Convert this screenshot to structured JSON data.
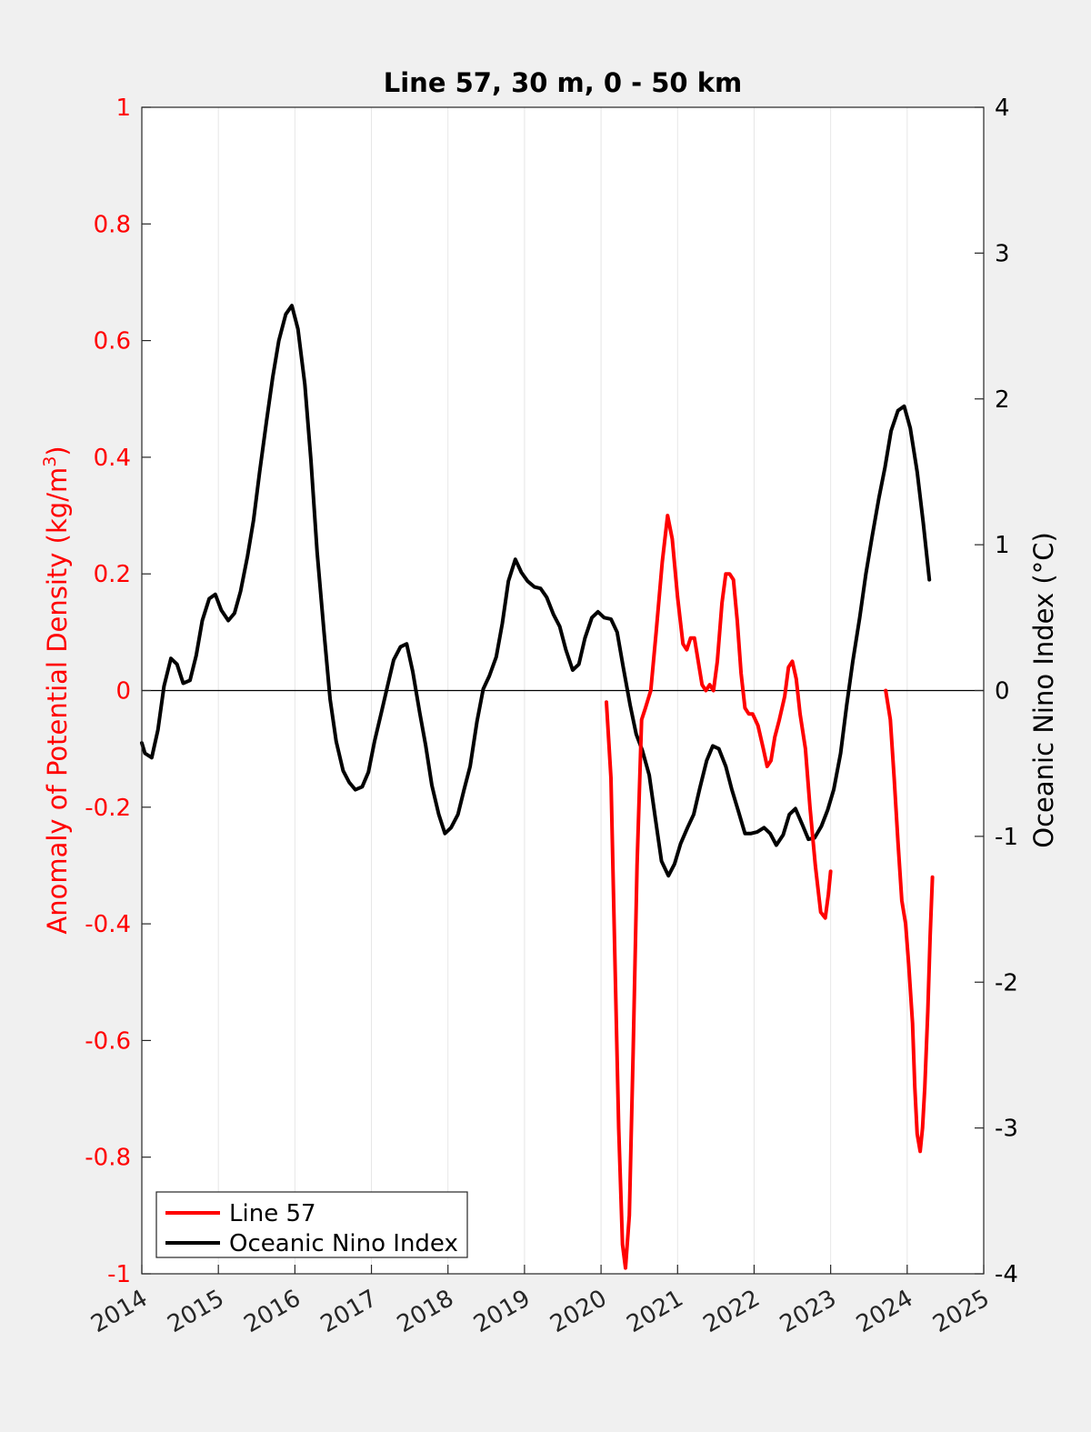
{
  "chart_data": {
    "type": "line",
    "title": "Line 57, 30 m, 0 - 50 km",
    "xlim": [
      2014,
      2025
    ],
    "x_ticks": [
      "2014",
      "2015",
      "2016",
      "2017",
      "2018",
      "2019",
      "2020",
      "2021",
      "2022",
      "2023",
      "2024",
      "2025"
    ],
    "y_left": {
      "label_prefix": "Anomaly of Potential Density (kg/m",
      "label_sup": "3",
      "label_suffix": ")",
      "ylim": [
        -1,
        1
      ],
      "ticks": [
        "-1",
        "-0.8",
        "-0.6",
        "-0.4",
        "-0.2",
        "0",
        "0.2",
        "0.4",
        "0.6",
        "0.8",
        "1"
      ],
      "color": "#ff0000"
    },
    "y_right": {
      "label": "Oceanic Nino Index (°C)",
      "ylim": [
        -4,
        4
      ],
      "ticks": [
        "-4",
        "-3",
        "-2",
        "-1",
        "0",
        "1",
        "2",
        "3",
        "4"
      ],
      "color": "#000000"
    },
    "grid": "vertical",
    "legend_position": "bottom-left",
    "series": [
      {
        "name": "Line 57",
        "axis": "left",
        "color": "#ff0000",
        "segments": [
          [
            [
              2020.07,
              -0.02
            ],
            [
              2020.13,
              -0.15
            ],
            [
              2020.18,
              -0.45
            ],
            [
              2020.23,
              -0.75
            ],
            [
              2020.28,
              -0.95
            ],
            [
              2020.32,
              -0.99
            ],
            [
              2020.37,
              -0.9
            ],
            [
              2020.42,
              -0.62
            ],
            [
              2020.47,
              -0.3
            ],
            [
              2020.53,
              -0.05
            ],
            [
              2020.58,
              -0.03
            ],
            [
              2020.65,
              0.0
            ],
            [
              2020.72,
              0.1
            ],
            [
              2020.8,
              0.22
            ],
            [
              2020.87,
              0.3
            ],
            [
              2020.93,
              0.26
            ],
            [
              2021.0,
              0.16
            ],
            [
              2021.07,
              0.08
            ],
            [
              2021.12,
              0.07
            ],
            [
              2021.17,
              0.09
            ],
            [
              2021.22,
              0.09
            ],
            [
              2021.27,
              0.05
            ],
            [
              2021.32,
              0.01
            ],
            [
              2021.37,
              0.0
            ],
            [
              2021.42,
              0.01
            ],
            [
              2021.47,
              0.0
            ],
            [
              2021.52,
              0.05
            ],
            [
              2021.58,
              0.15
            ],
            [
              2021.63,
              0.2
            ],
            [
              2021.68,
              0.2
            ],
            [
              2021.73,
              0.19
            ],
            [
              2021.78,
              0.12
            ],
            [
              2021.83,
              0.03
            ],
            [
              2021.88,
              -0.03
            ],
            [
              2021.93,
              -0.04
            ],
            [
              2021.98,
              -0.04
            ],
            [
              2022.05,
              -0.06
            ],
            [
              2022.12,
              -0.1
            ],
            [
              2022.17,
              -0.13
            ],
            [
              2022.22,
              -0.12
            ],
            [
              2022.27,
              -0.08
            ],
            [
              2022.33,
              -0.05
            ],
            [
              2022.4,
              -0.01
            ],
            [
              2022.45,
              0.04
            ],
            [
              2022.5,
              0.05
            ],
            [
              2022.55,
              0.02
            ],
            [
              2022.6,
              -0.04
            ],
            [
              2022.67,
              -0.1
            ],
            [
              2022.73,
              -0.2
            ],
            [
              2022.8,
              -0.3
            ],
            [
              2022.87,
              -0.38
            ],
            [
              2022.93,
              -0.39
            ],
            [
              2022.97,
              -0.35
            ],
            [
              2023.0,
              -0.31
            ]
          ],
          [
            [
              2023.72,
              0.0
            ],
            [
              2023.78,
              -0.05
            ],
            [
              2023.83,
              -0.15
            ],
            [
              2023.88,
              -0.26
            ],
            [
              2023.93,
              -0.36
            ],
            [
              2023.98,
              -0.4
            ],
            [
              2024.02,
              -0.47
            ],
            [
              2024.07,
              -0.57
            ],
            [
              2024.1,
              -0.68
            ],
            [
              2024.13,
              -0.76
            ],
            [
              2024.17,
              -0.79
            ],
            [
              2024.2,
              -0.75
            ],
            [
              2024.23,
              -0.68
            ],
            [
              2024.27,
              -0.55
            ],
            [
              2024.3,
              -0.42
            ],
            [
              2024.33,
              -0.32
            ]
          ]
        ]
      },
      {
        "name": "Oceanic Nino Index",
        "axis": "right",
        "color": "#000000",
        "segments": [
          [
            [
              2014.0,
              -0.36
            ],
            [
              2014.04,
              -0.43
            ],
            [
              2014.13,
              -0.46
            ],
            [
              2014.21,
              -0.27
            ],
            [
              2014.29,
              0.03
            ],
            [
              2014.38,
              0.22
            ],
            [
              2014.46,
              0.18
            ],
            [
              2014.54,
              0.05
            ],
            [
              2014.63,
              0.07
            ],
            [
              2014.71,
              0.24
            ],
            [
              2014.79,
              0.48
            ],
            [
              2014.88,
              0.63
            ],
            [
              2014.96,
              0.66
            ],
            [
              2015.04,
              0.55
            ],
            [
              2015.13,
              0.48
            ],
            [
              2015.21,
              0.53
            ],
            [
              2015.29,
              0.68
            ],
            [
              2015.38,
              0.92
            ],
            [
              2015.46,
              1.17
            ],
            [
              2015.54,
              1.5
            ],
            [
              2015.63,
              1.85
            ],
            [
              2015.71,
              2.15
            ],
            [
              2015.79,
              2.4
            ],
            [
              2015.88,
              2.58
            ],
            [
              2015.96,
              2.64
            ],
            [
              2016.04,
              2.48
            ],
            [
              2016.13,
              2.1
            ],
            [
              2016.21,
              1.58
            ],
            [
              2016.29,
              0.95
            ],
            [
              2016.38,
              0.4
            ],
            [
              2016.46,
              -0.06
            ],
            [
              2016.54,
              -0.35
            ],
            [
              2016.63,
              -0.55
            ],
            [
              2016.71,
              -0.63
            ],
            [
              2016.79,
              -0.68
            ],
            [
              2016.88,
              -0.66
            ],
            [
              2016.96,
              -0.56
            ],
            [
              2017.04,
              -0.35
            ],
            [
              2017.13,
              -0.15
            ],
            [
              2017.21,
              0.03
            ],
            [
              2017.29,
              0.21
            ],
            [
              2017.38,
              0.3
            ],
            [
              2017.46,
              0.32
            ],
            [
              2017.54,
              0.13
            ],
            [
              2017.63,
              -0.15
            ],
            [
              2017.71,
              -0.38
            ],
            [
              2017.79,
              -0.65
            ],
            [
              2017.88,
              -0.85
            ],
            [
              2017.96,
              -0.98
            ],
            [
              2018.04,
              -0.94
            ],
            [
              2018.13,
              -0.85
            ],
            [
              2018.21,
              -0.68
            ],
            [
              2018.29,
              -0.52
            ],
            [
              2018.38,
              -0.21
            ],
            [
              2018.46,
              0.01
            ],
            [
              2018.54,
              0.1
            ],
            [
              2018.63,
              0.23
            ],
            [
              2018.71,
              0.46
            ],
            [
              2018.79,
              0.75
            ],
            [
              2018.88,
              0.9
            ],
            [
              2018.96,
              0.81
            ],
            [
              2019.04,
              0.75
            ],
            [
              2019.13,
              0.71
            ],
            [
              2019.21,
              0.7
            ],
            [
              2019.29,
              0.64
            ],
            [
              2019.38,
              0.52
            ],
            [
              2019.46,
              0.44
            ],
            [
              2019.54,
              0.28
            ],
            [
              2019.63,
              0.14
            ],
            [
              2019.71,
              0.18
            ],
            [
              2019.79,
              0.36
            ],
            [
              2019.88,
              0.5
            ],
            [
              2019.96,
              0.54
            ],
            [
              2020.04,
              0.5
            ],
            [
              2020.13,
              0.49
            ],
            [
              2020.21,
              0.4
            ],
            [
              2020.29,
              0.16
            ],
            [
              2020.38,
              -0.1
            ],
            [
              2020.46,
              -0.3
            ],
            [
              2020.54,
              -0.41
            ],
            [
              2020.63,
              -0.58
            ],
            [
              2020.71,
              -0.88
            ],
            [
              2020.79,
              -1.17
            ],
            [
              2020.88,
              -1.27
            ],
            [
              2020.96,
              -1.19
            ],
            [
              2021.04,
              -1.05
            ],
            [
              2021.13,
              -0.94
            ],
            [
              2021.21,
              -0.85
            ],
            [
              2021.29,
              -0.67
            ],
            [
              2021.38,
              -0.48
            ],
            [
              2021.46,
              -0.38
            ],
            [
              2021.54,
              -0.4
            ],
            [
              2021.63,
              -0.52
            ],
            [
              2021.71,
              -0.68
            ],
            [
              2021.79,
              -0.82
            ],
            [
              2021.88,
              -0.98
            ],
            [
              2021.96,
              -0.98
            ],
            [
              2022.04,
              -0.97
            ],
            [
              2022.13,
              -0.94
            ],
            [
              2022.21,
              -0.98
            ],
            [
              2022.29,
              -1.06
            ],
            [
              2022.38,
              -0.99
            ],
            [
              2022.46,
              -0.85
            ],
            [
              2022.54,
              -0.81
            ],
            [
              2022.63,
              -0.92
            ],
            [
              2022.71,
              -1.02
            ],
            [
              2022.79,
              -1.01
            ],
            [
              2022.88,
              -0.93
            ],
            [
              2022.96,
              -0.82
            ],
            [
              2023.04,
              -0.68
            ],
            [
              2023.13,
              -0.43
            ],
            [
              2023.21,
              -0.1
            ],
            [
              2023.29,
              0.2
            ],
            [
              2023.38,
              0.5
            ],
            [
              2023.46,
              0.8
            ],
            [
              2023.54,
              1.05
            ],
            [
              2023.63,
              1.32
            ],
            [
              2023.71,
              1.53
            ],
            [
              2023.79,
              1.78
            ],
            [
              2023.88,
              1.92
            ],
            [
              2023.96,
              1.95
            ],
            [
              2024.04,
              1.8
            ],
            [
              2024.13,
              1.5
            ],
            [
              2024.21,
              1.15
            ],
            [
              2024.29,
              0.76
            ]
          ]
        ]
      }
    ]
  }
}
